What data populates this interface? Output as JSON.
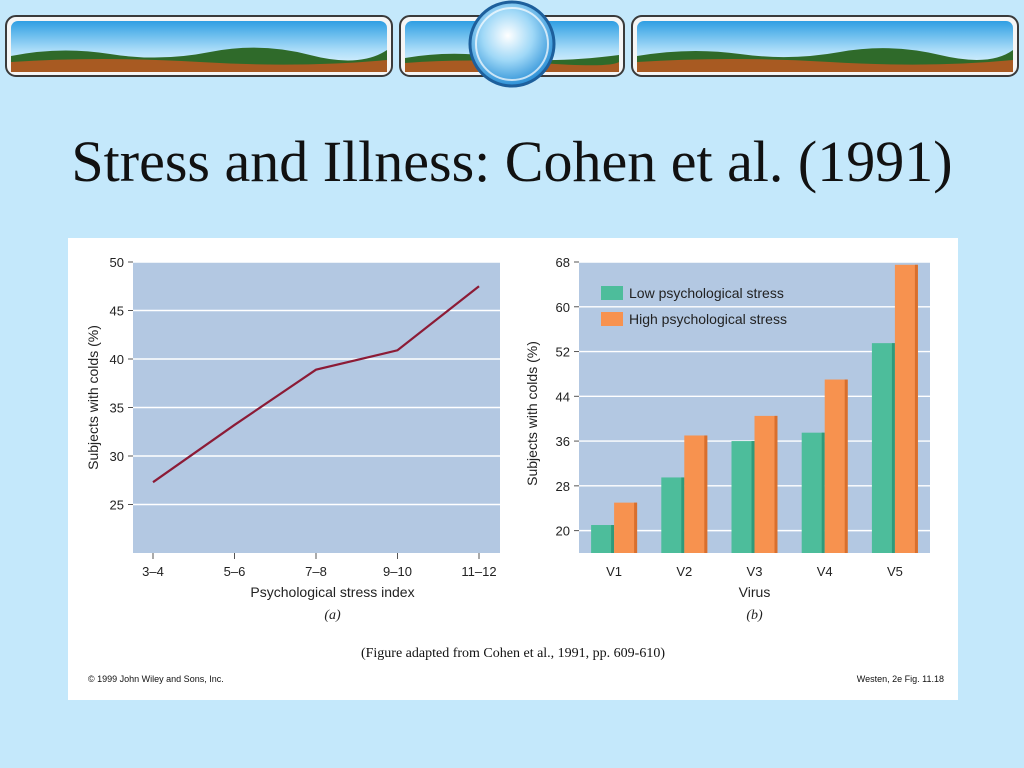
{
  "slide": {
    "title": "Stress and Illness: Cohen et al. (1991)"
  },
  "figure": {
    "caption": "(Figure adapted from Cohen et al., 1991, pp. 609-610)",
    "copyright": "© 1999 John Wiley and Sons, Inc.",
    "reference": "Westen, 2e Fig. 11.18"
  },
  "colors": {
    "background": "#c4e8fb",
    "plot_bg": "#b3c8e2",
    "line": "#8c1b36",
    "low_stress": "#4dbd9b",
    "high_stress": "#f7924f"
  },
  "chart_data": [
    {
      "type": "line",
      "panel_label": "(a)",
      "categories": [
        "3–4",
        "5–6",
        "7–8",
        "9–10",
        "11–12"
      ],
      "series": [
        {
          "values": [
            27.3,
            33.2,
            38.9,
            40.9,
            47.5
          ]
        }
      ],
      "xlabel": "Psychological stress index",
      "ylabel": "Subjects with colds (%)",
      "yticks": [
        "25",
        "30",
        "35",
        "40",
        "45",
        "50"
      ],
      "ylim": [
        20,
        50
      ],
      "grid": true
    },
    {
      "type": "bar",
      "panel_label": "(b)",
      "categories": [
        "V1",
        "V2",
        "V3",
        "V4",
        "V5"
      ],
      "series": [
        {
          "name": "Low psychological stress",
          "values": [
            21,
            29.5,
            36,
            37.5,
            53.5
          ]
        },
        {
          "name": "High psychological stress",
          "values": [
            25,
            37,
            40.5,
            47,
            67.5
          ]
        }
      ],
      "xlabel": "Virus",
      "ylabel": "Subjects with colds (%)",
      "yticks": [
        "20",
        "28",
        "36",
        "44",
        "52",
        "60",
        "68"
      ],
      "ylim": [
        16,
        68
      ],
      "grid": true,
      "legend": "top-left"
    }
  ]
}
